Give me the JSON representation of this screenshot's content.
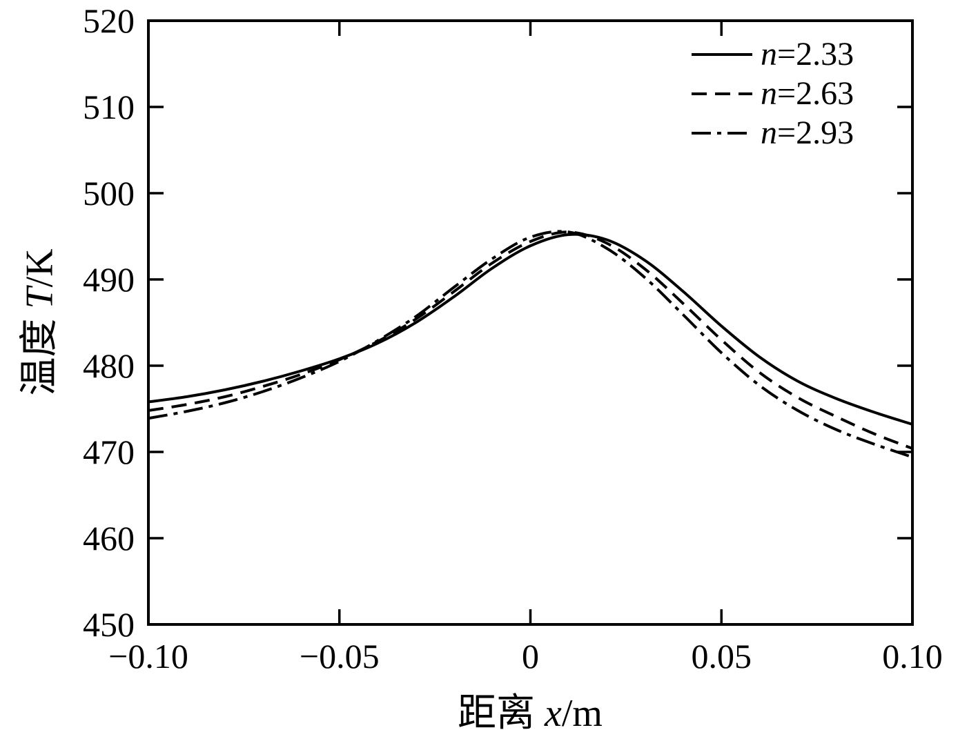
{
  "figure": {
    "background": "#ffffff",
    "frame_color": "#000000",
    "line_color": "#000000"
  },
  "chart_data": {
    "type": "line",
    "title": "",
    "xlabel": {
      "prefix": "距离 ",
      "var": "x",
      "suffix": "/m"
    },
    "ylabel": {
      "prefix": "温度 ",
      "var": "T",
      "suffix": "/K"
    },
    "xlim": [
      -0.1,
      0.1
    ],
    "ylim": [
      450,
      520
    ],
    "grid": false,
    "legend_position": "top-right",
    "x_ticks": [
      -0.1,
      -0.05,
      0,
      0.05,
      0.1
    ],
    "x_tick_labels": [
      "−0.10",
      "−0.05",
      "0",
      "0.05",
      "0.10"
    ],
    "y_ticks": [
      450,
      460,
      470,
      480,
      490,
      500,
      510,
      520
    ],
    "y_tick_labels": [
      "450",
      "460",
      "470",
      "480",
      "490",
      "500",
      "510",
      "520"
    ],
    "x": [
      -0.1,
      -0.09,
      -0.08,
      -0.07,
      -0.06,
      -0.05,
      -0.04,
      -0.03,
      -0.02,
      -0.01,
      0,
      0.01,
      0.02,
      0.03,
      0.04,
      0.05,
      0.06,
      0.07,
      0.08,
      0.09,
      0.1
    ],
    "series": [
      {
        "name": "n=2.33",
        "label_var": "n",
        "label_rest": "=2.33",
        "style": "solid",
        "color": "#000000",
        "values": [
          475.8,
          476.4,
          477.2,
          478.2,
          479.4,
          480.8,
          482.6,
          485.0,
          488.0,
          491.3,
          493.9,
          495.2,
          494.6,
          492.2,
          488.6,
          484.6,
          481.0,
          478.2,
          476.2,
          474.6,
          473.2
        ]
      },
      {
        "name": "n=2.63",
        "label_var": "n",
        "label_rest": "=2.63",
        "style": "dashed",
        "color": "#000000",
        "values": [
          474.8,
          475.5,
          476.4,
          477.6,
          479.0,
          480.7,
          482.8,
          485.4,
          488.6,
          491.9,
          494.4,
          495.5,
          494.2,
          491.2,
          487.2,
          483.0,
          479.2,
          476.3,
          474.1,
          472.1,
          470.4
        ]
      },
      {
        "name": "n=2.93",
        "label_var": "n",
        "label_rest": "=2.93",
        "style": "dash-dot",
        "color": "#000000",
        "values": [
          473.9,
          474.7,
          475.7,
          477.0,
          478.6,
          480.5,
          482.9,
          485.7,
          489.1,
          492.4,
          494.9,
          495.5,
          493.6,
          490.2,
          485.9,
          481.5,
          477.7,
          474.8,
          472.6,
          470.9,
          469.4
        ]
      }
    ]
  }
}
